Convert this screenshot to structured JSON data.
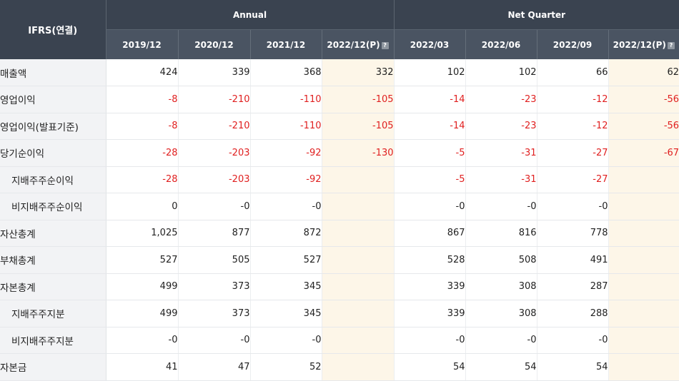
{
  "header": {
    "corner_label": "IFRS(연결)",
    "annual_label": "Annual",
    "quarter_label": "Net Quarter",
    "annual_periods": [
      "2019/12",
      "2020/12",
      "2021/12",
      "2022/12(P)"
    ],
    "quarter_periods": [
      "2022/03",
      "2022/06",
      "2022/09",
      "2022/12(P)"
    ],
    "info_icon_glyph": "?"
  },
  "rows": [
    {
      "label": "매출액",
      "indent": false,
      "values": [
        "424",
        "339",
        "368",
        "332",
        "102",
        "102",
        "66",
        "62"
      ]
    },
    {
      "label": "영업이익",
      "indent": false,
      "values": [
        "-8",
        "-210",
        "-110",
        "-105",
        "-14",
        "-23",
        "-12",
        "-56"
      ]
    },
    {
      "label": "영업이익(발표기준)",
      "indent": false,
      "values": [
        "-8",
        "-210",
        "-110",
        "-105",
        "-14",
        "-23",
        "-12",
        "-56"
      ]
    },
    {
      "label": "당기순이익",
      "indent": false,
      "values": [
        "-28",
        "-203",
        "-92",
        "-130",
        "-5",
        "-31",
        "-27",
        "-67"
      ]
    },
    {
      "label": "지배주주순이익",
      "indent": true,
      "values": [
        "-28",
        "-203",
        "-92",
        "",
        "-5",
        "-31",
        "-27",
        ""
      ]
    },
    {
      "label": "비지배주주순이익",
      "indent": true,
      "values": [
        "0",
        "-0",
        "-0",
        "",
        "-0",
        "-0",
        "-0",
        ""
      ]
    },
    {
      "label": "자산총계",
      "indent": false,
      "values": [
        "1,025",
        "877",
        "872",
        "",
        "867",
        "816",
        "778",
        ""
      ]
    },
    {
      "label": "부채총계",
      "indent": false,
      "values": [
        "527",
        "505",
        "527",
        "",
        "528",
        "508",
        "491",
        ""
      ]
    },
    {
      "label": "자본총계",
      "indent": false,
      "values": [
        "499",
        "373",
        "345",
        "",
        "339",
        "308",
        "287",
        ""
      ]
    },
    {
      "label": "지배주주지분",
      "indent": true,
      "values": [
        "499",
        "373",
        "345",
        "",
        "339",
        "308",
        "288",
        ""
      ]
    },
    {
      "label": "비지배주주지분",
      "indent": true,
      "values": [
        "-0",
        "-0",
        "-0",
        "",
        "-0",
        "-0",
        "-0",
        ""
      ]
    },
    {
      "label": "자본금",
      "indent": false,
      "values": [
        "41",
        "47",
        "52",
        "",
        "54",
        "54",
        "54",
        ""
      ]
    }
  ],
  "colors": {
    "header_dark": "#3a4350",
    "header_period": "#4a5462",
    "negative": "#e02020",
    "projection_highlight": "#fdf6e8",
    "label_bg": "#f2f3f5"
  }
}
